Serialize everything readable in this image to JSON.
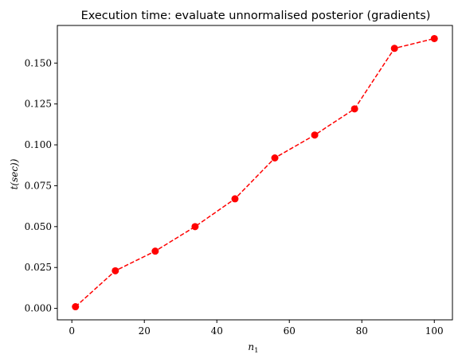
{
  "chart_data": {
    "type": "line",
    "title": "Execution time: evaluate unnormalised posterior (gradients)",
    "xlabel": "n",
    "xlabel_sub": "1",
    "ylabel": "t(sec))",
    "x": [
      1,
      12,
      23,
      34,
      45,
      56,
      67,
      78,
      89,
      100
    ],
    "series": [
      {
        "values": [
          0.001,
          0.023,
          0.035,
          0.05,
          0.067,
          0.092,
          0.106,
          0.122,
          0.159,
          0.165
        ],
        "color": "#ff0000",
        "line_style": "dashed",
        "marker": "circle"
      }
    ],
    "xlim": [
      -4,
      105
    ],
    "ylim": [
      -0.007,
      0.173
    ],
    "xticks": [
      0,
      20,
      40,
      60,
      80,
      100
    ],
    "xtick_labels": [
      "0",
      "20",
      "40",
      "60",
      "80",
      "100"
    ],
    "yticks": [
      0.0,
      0.025,
      0.05,
      0.075,
      0.1,
      0.125,
      0.15
    ],
    "ytick_labels": [
      "0.000",
      "0.025",
      "0.050",
      "0.075",
      "0.100",
      "0.125",
      "0.150"
    ],
    "grid": false,
    "legend": false
  }
}
